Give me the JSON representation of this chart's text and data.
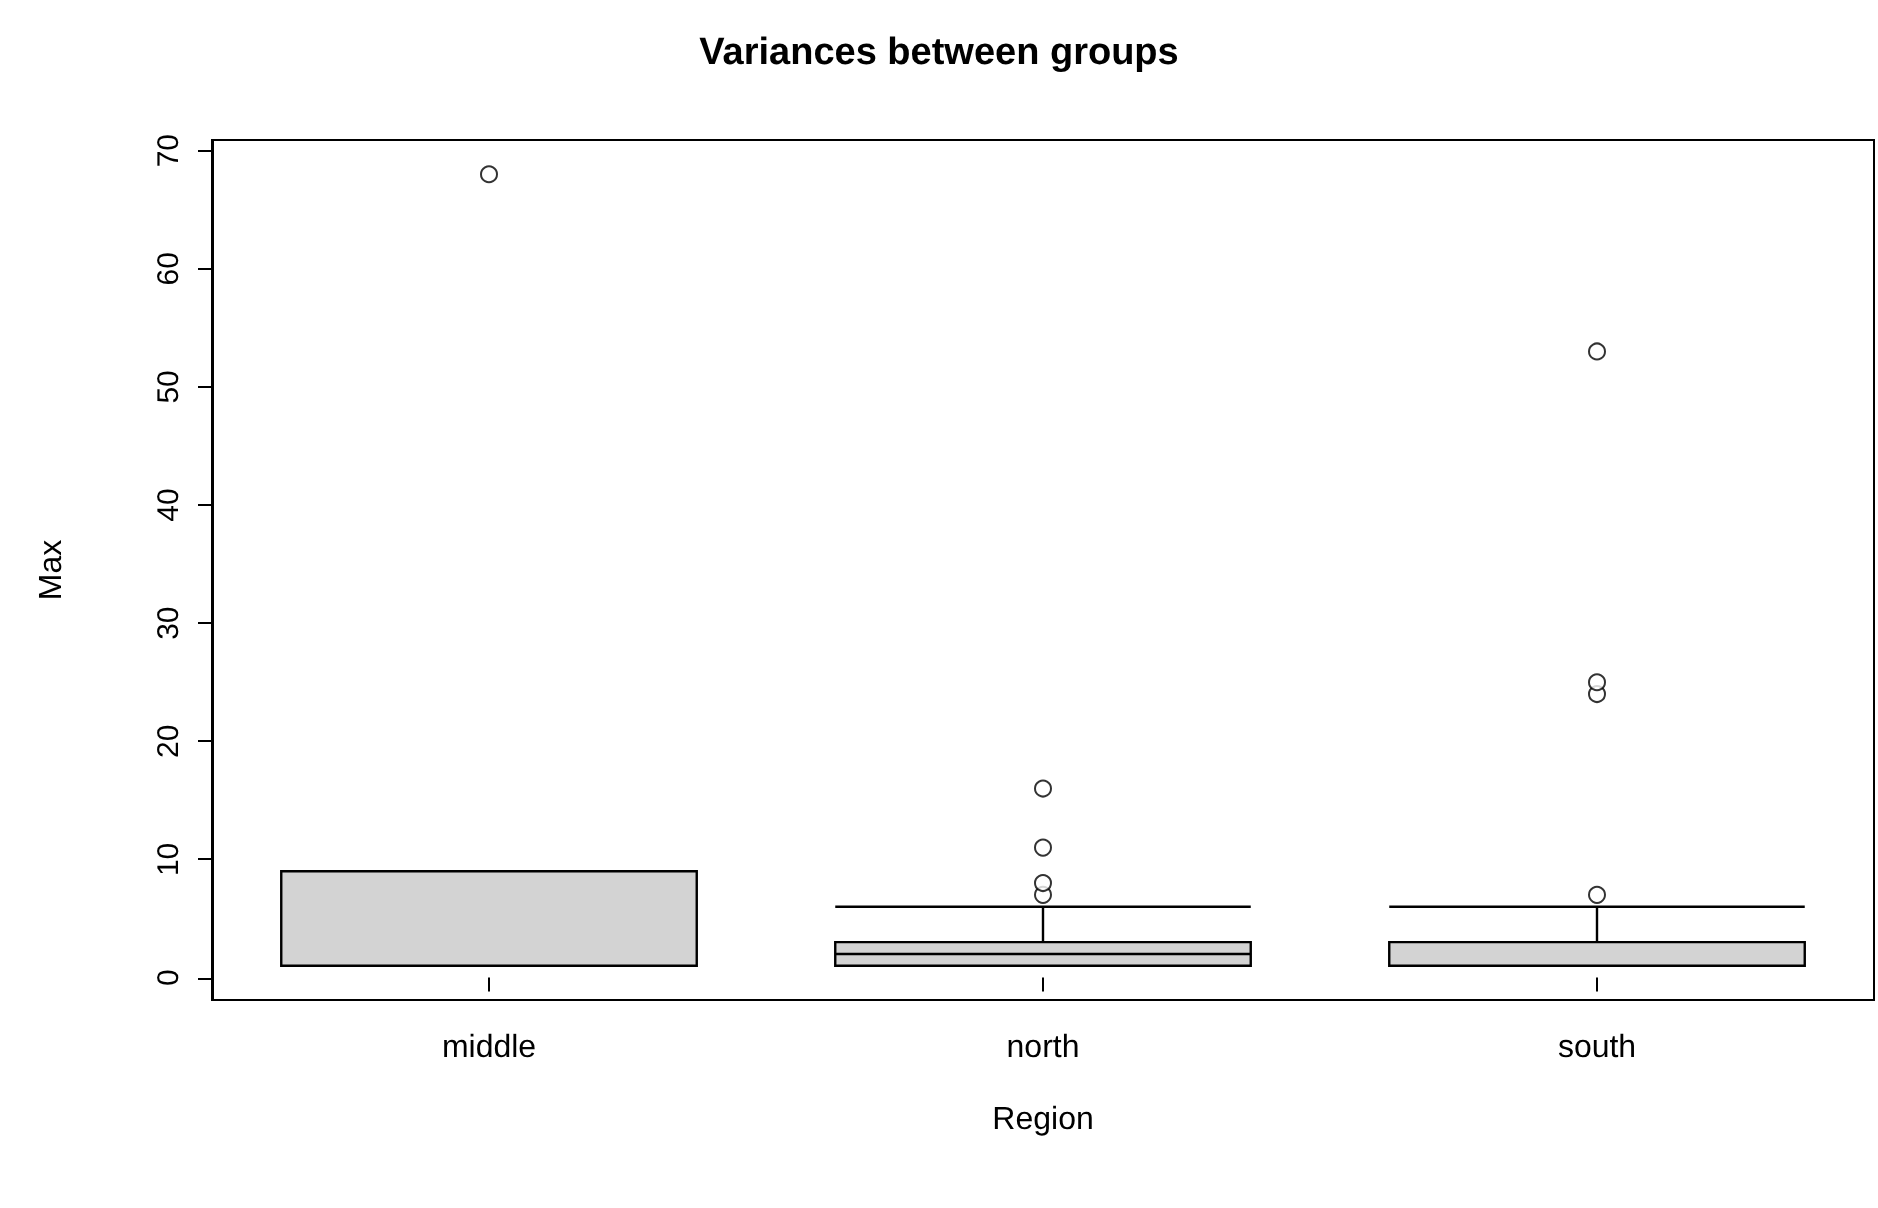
{
  "chart_data": {
    "type": "box",
    "title": "Variances between groups",
    "xlabel": "Region",
    "ylabel": "Max",
    "categories": [
      "middle",
      "north",
      "south"
    ],
    "color": "#d3d3d3",
    "boxes": [
      {
        "low": 1,
        "q1": 1,
        "median": 1,
        "q3": 9,
        "high": 9,
        "outliers": [
          68
        ]
      },
      {
        "low": 1,
        "q1": 1,
        "median": 2,
        "q3": 3,
        "high": 6,
        "outliers": [
          7,
          8,
          11,
          16
        ]
      },
      {
        "low": 1,
        "q1": 1,
        "median": 1,
        "q3": 3,
        "high": 6,
        "outliers": [
          7,
          24,
          25,
          53
        ]
      }
    ],
    "ylim": [
      -1.9,
      70.9
    ],
    "yticks": [
      0,
      10,
      20,
      30,
      40,
      50,
      60,
      70
    ],
    "grid": false,
    "marker": "circle"
  }
}
